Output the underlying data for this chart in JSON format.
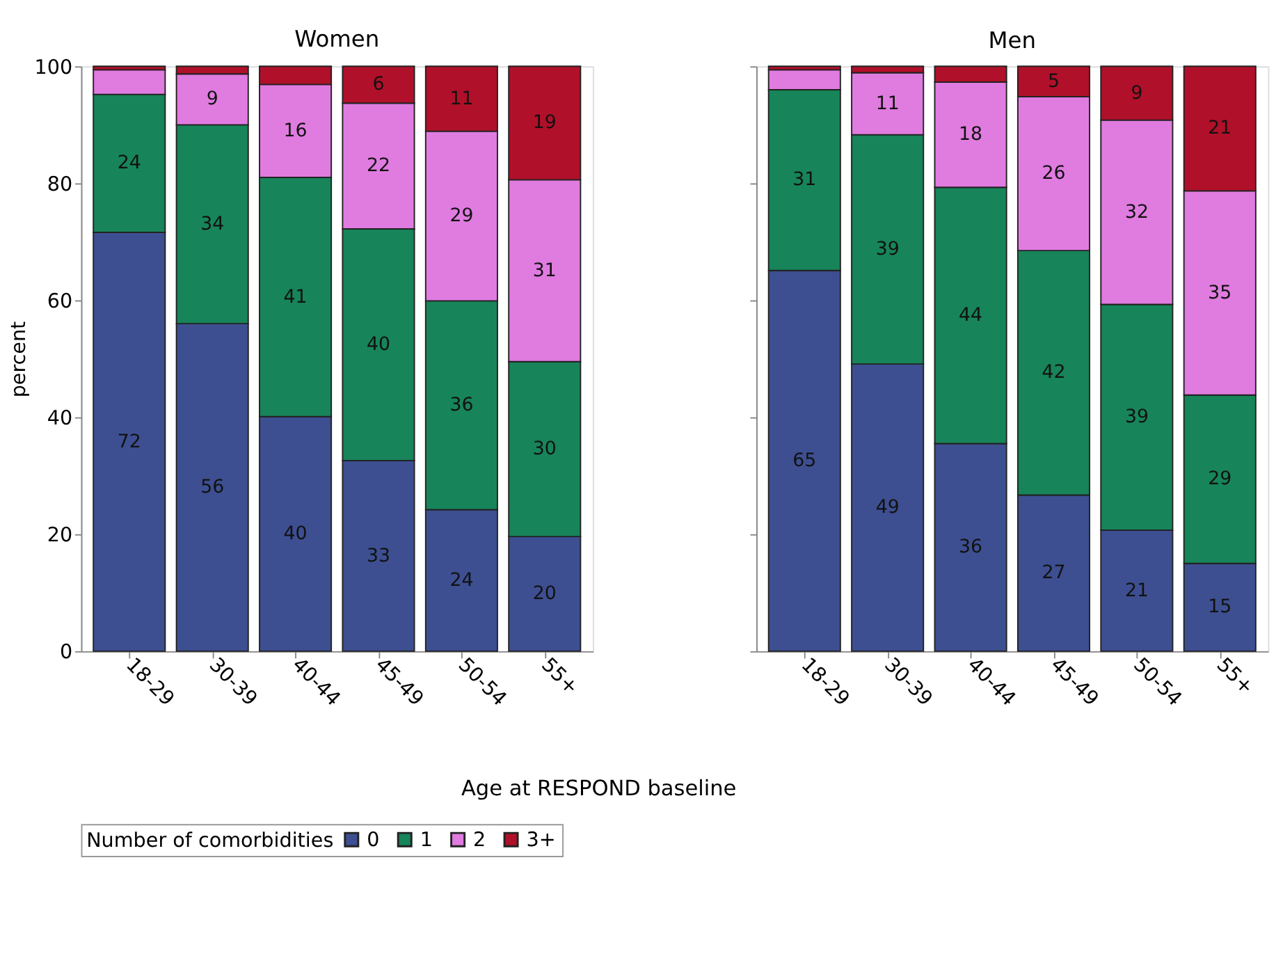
{
  "chart_data": [
    {
      "type": "bar",
      "stacked": true,
      "title": "Women",
      "ylabel": "percent",
      "xlabel": "Age at RESPOND baseline",
      "legend_title": "Number of comorbidities",
      "legend": "bottom",
      "grid": false,
      "ylim": [
        0,
        100
      ],
      "yticks": [
        0,
        20,
        40,
        60,
        80,
        100
      ],
      "categories": [
        "18-29",
        "30-39",
        "40-44",
        "45-49",
        "50-54",
        "55+"
      ],
      "series": [
        {
          "name": "0",
          "color": "#3d4f91",
          "values": [
            71.6,
            56.0,
            40.1,
            32.6,
            24.2,
            19.6
          ],
          "value_labels": [
            "72",
            "56",
            "40",
            "33",
            "24",
            "20"
          ]
        },
        {
          "name": "1",
          "color": "#17845a",
          "values": [
            23.6,
            34.0,
            40.9,
            39.6,
            35.7,
            29.9
          ],
          "value_labels": [
            "24",
            "34",
            "41",
            "40",
            "36",
            "30"
          ]
        },
        {
          "name": "2",
          "color": "#e07be0",
          "values": [
            4.2,
            8.7,
            15.9,
            21.5,
            29.0,
            31.1
          ],
          "value_labels": [
            null,
            "9",
            "16",
            "22",
            "29",
            "31"
          ]
        },
        {
          "name": "3+",
          "color": "#b0102a",
          "values": [
            0.6,
            1.3,
            3.1,
            6.3,
            11.1,
            19.4
          ],
          "value_labels": [
            null,
            null,
            null,
            "6",
            "11",
            "19"
          ]
        }
      ]
    },
    {
      "type": "bar",
      "stacked": true,
      "title": "Men",
      "tick_labels": "x",
      "grid": false,
      "ylim": [
        0,
        100
      ],
      "yticks": [
        0,
        20,
        40,
        60,
        80,
        100
      ],
      "categories": [
        "18-29",
        "30-39",
        "40-44",
        "45-49",
        "50-54",
        "55+"
      ],
      "series": [
        {
          "name": "0",
          "color": "#3d4f91",
          "values": [
            65.1,
            49.1,
            35.5,
            26.7,
            20.7,
            15.0
          ],
          "value_labels": [
            "65",
            "49",
            "36",
            "27",
            "21",
            "15"
          ]
        },
        {
          "name": "1",
          "color": "#17845a",
          "values": [
            30.9,
            39.2,
            43.8,
            41.8,
            38.6,
            28.8
          ],
          "value_labels": [
            "31",
            "39",
            "44",
            "42",
            "39",
            "29"
          ]
        },
        {
          "name": "2",
          "color": "#e07be0",
          "values": [
            3.4,
            10.6,
            18.0,
            26.3,
            31.5,
            34.9
          ],
          "value_labels": [
            null,
            "11",
            "18",
            "26",
            "32",
            "35"
          ]
        },
        {
          "name": "3+",
          "color": "#b0102a",
          "values": [
            0.6,
            1.1,
            2.7,
            5.2,
            9.2,
            21.3
          ],
          "value_labels": [
            null,
            null,
            null,
            "5",
            "9",
            "21"
          ]
        }
      ]
    }
  ]
}
